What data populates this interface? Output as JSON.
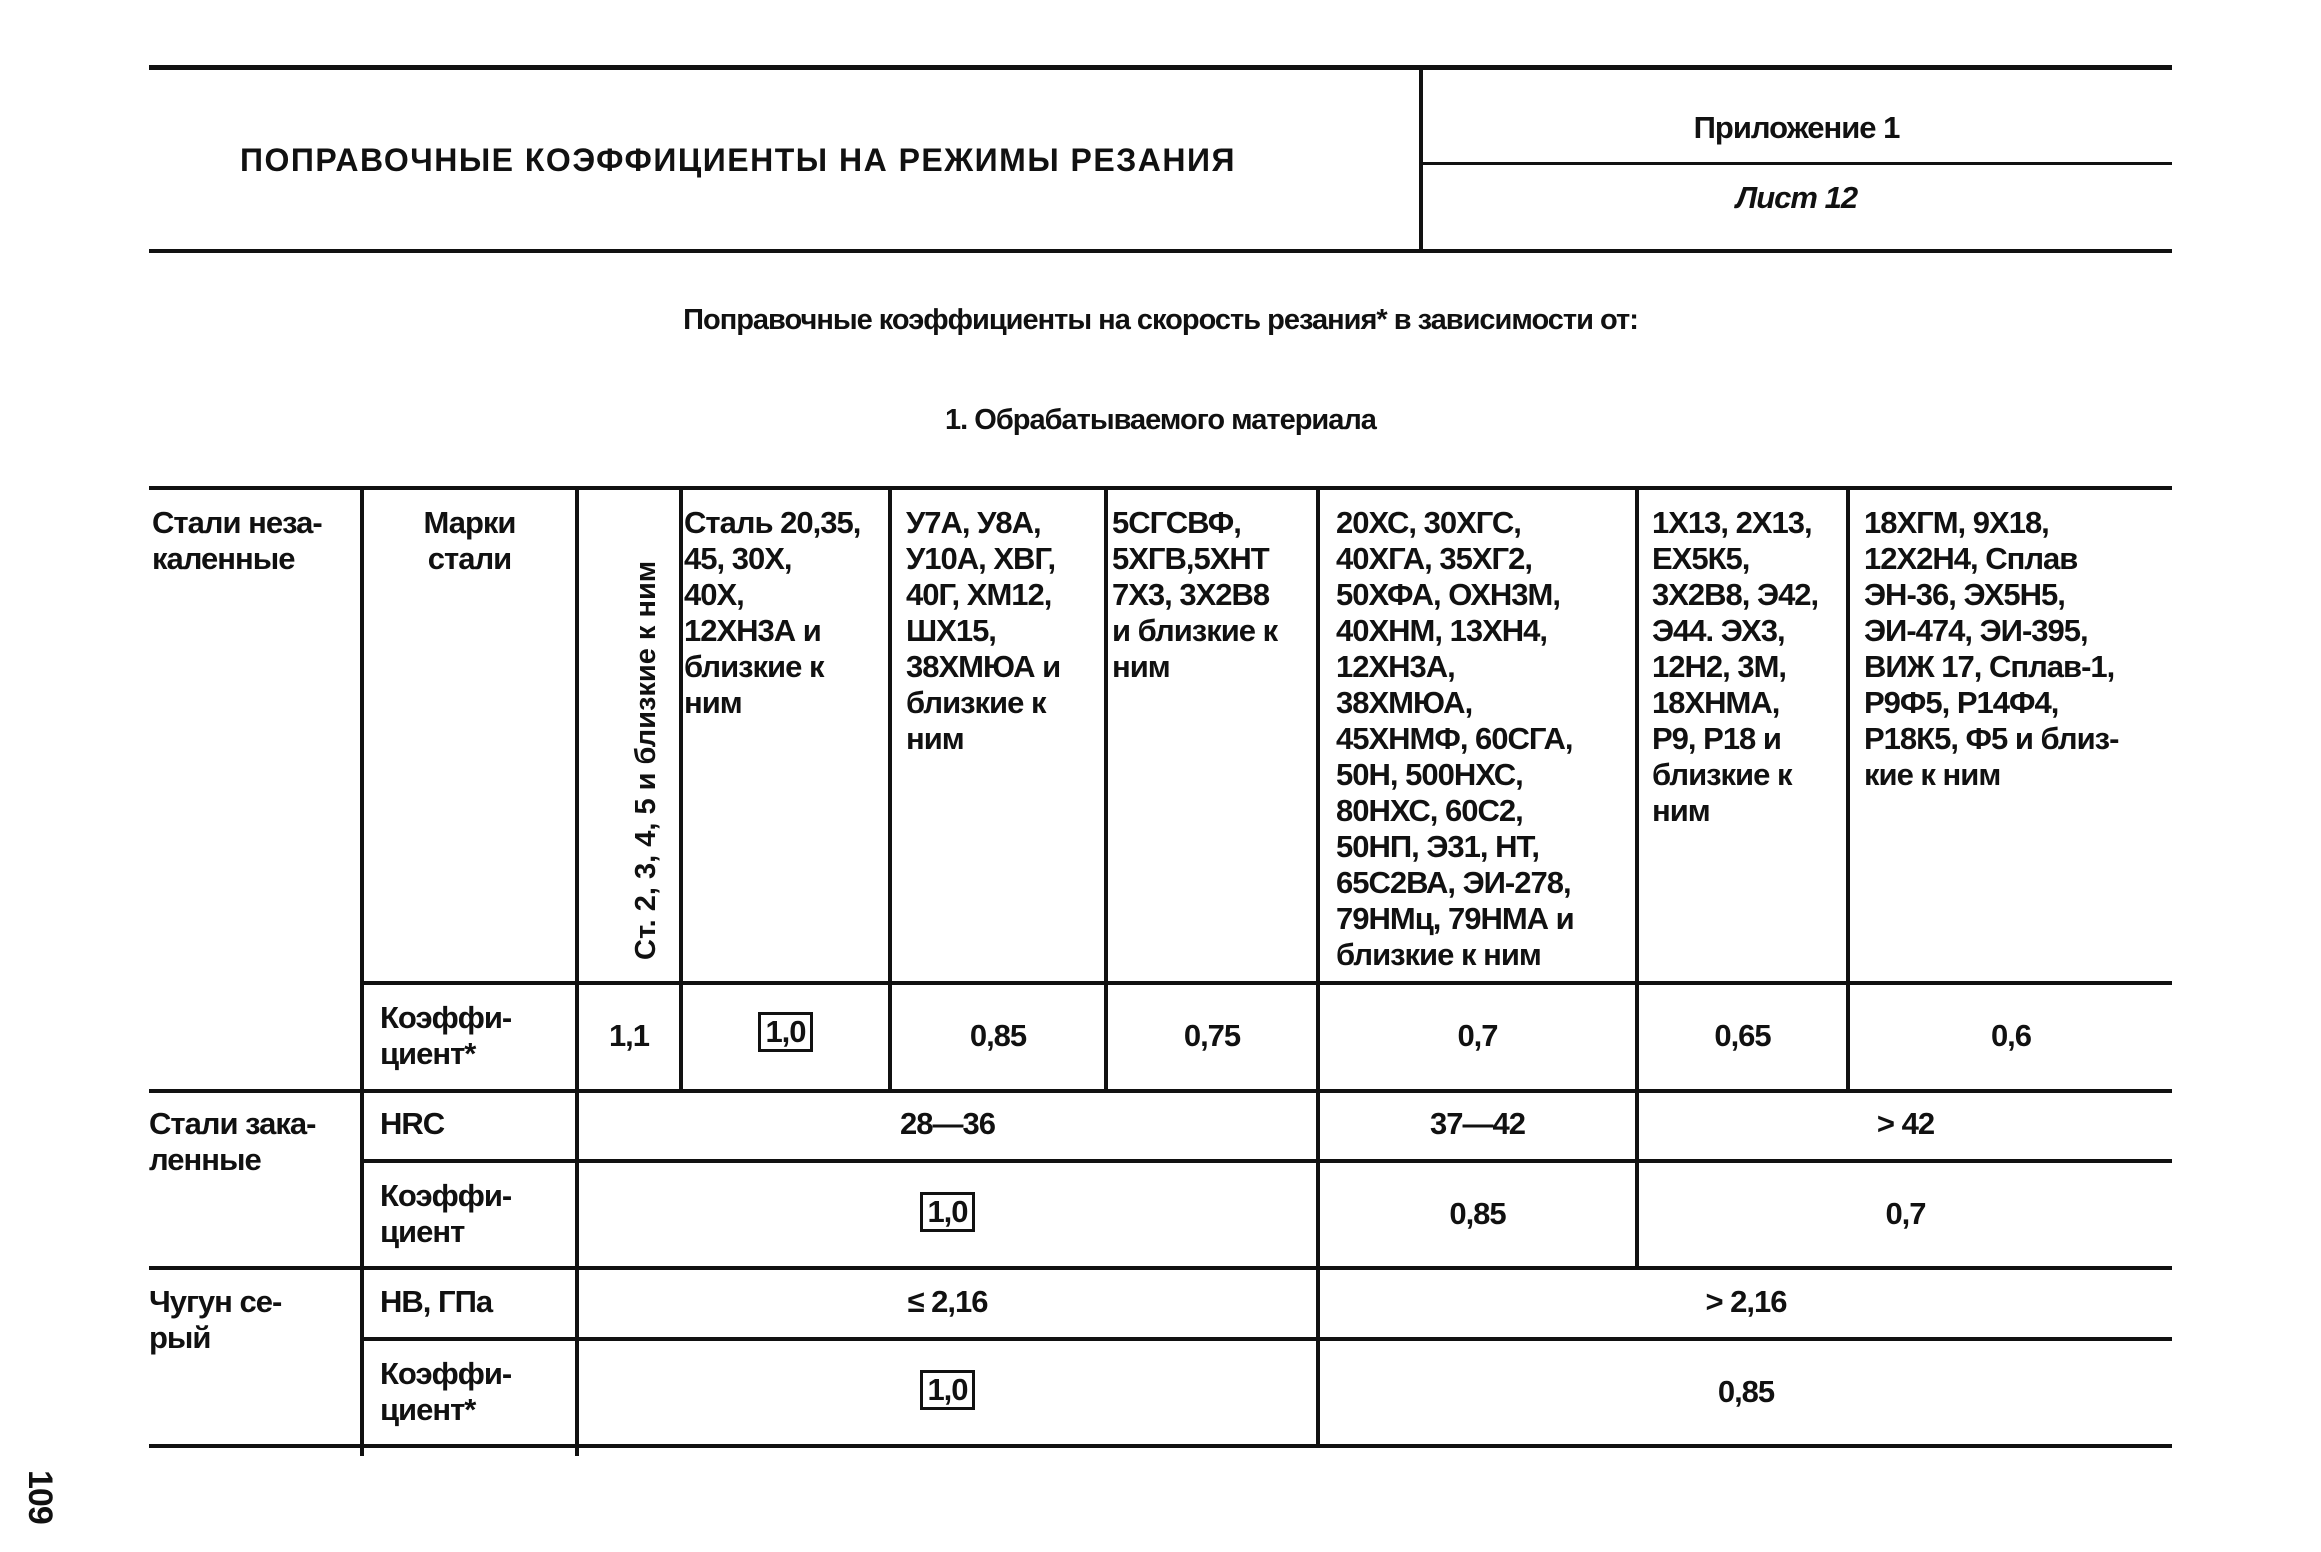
{
  "header": {
    "title": "ПОПРАВОЧНЫЕ КОЭФФИЦИЕНТЫ НА РЕЖИМЫ РЕЗАНИЯ",
    "appendix": "Приложение 1",
    "sheet": "Лист 12"
  },
  "subtitle": "Поправочные коэффициенты на скорость резания* в зависимости от:",
  "section": "1. Обрабатываемого материала",
  "page_number": "109",
  "table": {
    "unhardened": {
      "group": "Стали неза-\nкаленные",
      "grades_label": "Марки\nстали",
      "coef_label": "Коэффи-\nциент*",
      "grades": [
        "Ст. 2, 3, 4, 5 и близкие к ним",
        "Сталь 20,35,\n45, 30Х,\n40Х,\n12ХН3А и\nблизкие к\nним",
        "У7А, У8А,\nУ10А, ХВГ,\n40Г, ХМ12,\nШХ15,\n38ХМЮА и\nблизкие к\nним",
        "5СГСВФ,\n5ХГВ,5ХНТ\n7Х3, 3Х2В8\nи близкие к\nним",
        "20ХС, 30ХГС,\n40ХГА, 35ХГ2,\n50ХФА, ОХН3М,\n40ХНМ, 13ХН4,\n12ХН3А,\n38ХМЮА,\n45ХНМФ, 60СГА,\n50Н, 500НХС,\n80НХС, 60С2,\n50НП, Э31, НТ,\n65С2ВА, ЭИ-278,\n79НМц, 79НМА и\nблизкие к ним",
        "1Х13, 2Х13,\nЕХ5К5,\n3Х2В8, Э42,\nЭ44. ЭХ3,\n12Н2, 3М,\n18ХНМА,\nР9, Р18 и\nблизкие к\nним",
        "18ХГМ, 9Х18,\n12Х2Н4, Сплав\nЭН-36, ЭХ5Н5,\nЭИ-474, ЭИ-395,\nВИЖ 17, Сплав-1,\nР9Ф5, Р14Ф4,\nР18К5, Ф5 и близ-\nкие к ним"
      ],
      "coefs": [
        "1,1",
        "1,0",
        "0,85",
        "0,75",
        "0,7",
        "0,65",
        "0,6"
      ]
    },
    "hardened": {
      "group": "Стали зака-\nленные",
      "param_label": "HRC",
      "coef_label": "Коэффи-\nциент",
      "ranges": [
        "28—36",
        "37—42",
        "> 42"
      ],
      "coefs": [
        "1,0",
        "0,85",
        "0,7"
      ]
    },
    "cast_iron": {
      "group": "Чугун се-\nрый",
      "param_label": "НВ, ГПа",
      "coef_label": "Коэффи-\nциент*",
      "ranges": [
        "≤ 2,16",
        "> 2,16"
      ],
      "coefs": [
        "1,0",
        "0,85"
      ]
    }
  }
}
